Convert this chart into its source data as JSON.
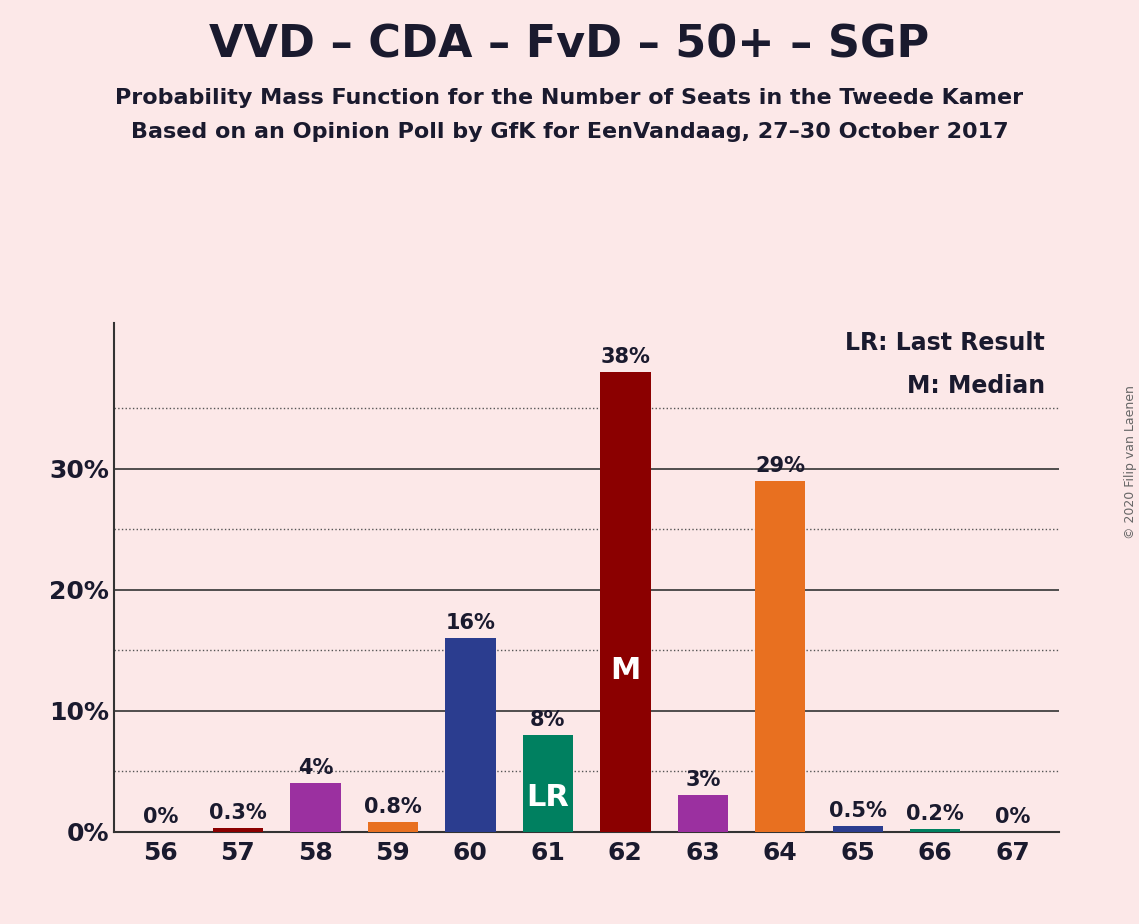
{
  "title": "VVD – CDA – FvD – 50+ – SGP",
  "subtitle1": "Probability Mass Function for the Number of Seats in the Tweede Kamer",
  "subtitle2": "Based on an Opinion Poll by GfK for EenVandaag, 27–30 October 2017",
  "copyright": "© 2020 Filip van Laenen",
  "background_color": "#fce8e8",
  "categories": [
    56,
    57,
    58,
    59,
    60,
    61,
    62,
    63,
    64,
    65,
    66,
    67
  ],
  "values": [
    0.0,
    0.3,
    4.0,
    0.8,
    16.0,
    8.0,
    38.0,
    3.0,
    29.0,
    0.5,
    0.2,
    0.0
  ],
  "labels": [
    "0%",
    "0.3%",
    "4%",
    "0.8%",
    "16%",
    "8%",
    "38%",
    "3%",
    "29%",
    "0.5%",
    "0.2%",
    "0%"
  ],
  "bar_colors": [
    "#8b0000",
    "#8b0000",
    "#9b30a0",
    "#e87020",
    "#2b3d8f",
    "#008060",
    "#8b0000",
    "#9b30a0",
    "#e87020",
    "#2b3d8f",
    "#008060",
    "#8b0000"
  ],
  "median_bar_index": 6,
  "lr_bar_index": 5,
  "median_label": "M",
  "lr_label": "LR",
  "legend_lr": "LR: Last Result",
  "legend_m": "M: Median",
  "ylim": [
    0,
    42
  ],
  "solid_lines": [
    10,
    20,
    30
  ],
  "dotted_lines": [
    5,
    15,
    25,
    35
  ],
  "ytick_positions": [
    0,
    10,
    20,
    30
  ],
  "ytick_labels": [
    "0%",
    "10%",
    "20%",
    "30%"
  ],
  "title_fontsize": 32,
  "subtitle_fontsize": 16,
  "label_fontsize": 15,
  "tick_fontsize": 18,
  "legend_fontsize": 17,
  "inside_label_fontsize": 22
}
